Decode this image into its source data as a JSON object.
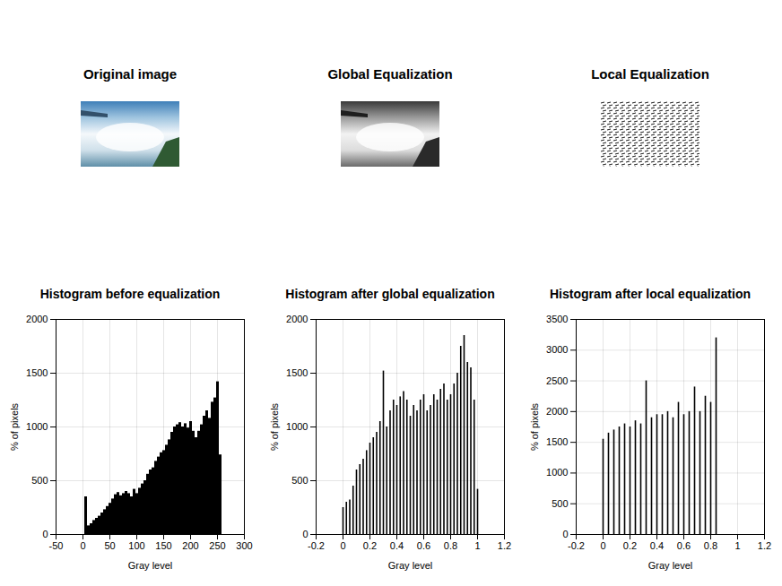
{
  "chart_data": [
    {
      "type": "image",
      "title": "Original image"
    },
    {
      "type": "image",
      "title": "Global Equalization"
    },
    {
      "type": "image",
      "title": "Local Equalization"
    },
    {
      "type": "bar",
      "title": "Histogram before equalization",
      "x": [
        5,
        10,
        15,
        20,
        25,
        30,
        35,
        40,
        45,
        50,
        55,
        60,
        65,
        70,
        75,
        80,
        85,
        90,
        95,
        100,
        105,
        110,
        115,
        120,
        125,
        130,
        135,
        140,
        145,
        150,
        155,
        160,
        165,
        170,
        175,
        180,
        185,
        190,
        195,
        200,
        205,
        210,
        215,
        220,
        225,
        230,
        235,
        240,
        245,
        250,
        255
      ],
      "values": [
        350,
        80,
        100,
        130,
        150,
        170,
        200,
        230,
        260,
        290,
        330,
        370,
        390,
        360,
        380,
        400,
        380,
        350,
        420,
        380,
        430,
        470,
        500,
        560,
        600,
        620,
        680,
        720,
        760,
        780,
        830,
        880,
        950,
        1000,
        1020,
        1040,
        1000,
        1030,
        990,
        1050,
        960,
        900,
        960,
        1020,
        1100,
        1150,
        1080,
        1230,
        1270,
        1420,
        740
      ],
      "color": "#000000",
      "xlabel": "Gray level",
      "ylabel": "% of pixels",
      "xlim": [
        -50,
        300
      ],
      "xticks": [
        -50,
        0,
        50,
        100,
        150,
        200,
        250,
        300
      ],
      "ylim": [
        0,
        2000
      ],
      "yticks": [
        0,
        500,
        1000,
        1500,
        2000
      ],
      "grid": true
    },
    {
      "type": "bar",
      "title": "Histogram after global equalization",
      "x": [
        0,
        0.025,
        0.05,
        0.075,
        0.1,
        0.125,
        0.15,
        0.175,
        0.2,
        0.225,
        0.25,
        0.275,
        0.3,
        0.325,
        0.35,
        0.375,
        0.4,
        0.425,
        0.45,
        0.475,
        0.5,
        0.525,
        0.55,
        0.575,
        0.6,
        0.625,
        0.65,
        0.675,
        0.7,
        0.725,
        0.75,
        0.775,
        0.8,
        0.825,
        0.85,
        0.875,
        0.9,
        0.925,
        0.95,
        0.975,
        1
      ],
      "values": [
        250,
        300,
        320,
        450,
        600,
        650,
        700,
        780,
        850,
        900,
        950,
        1050,
        1520,
        1000,
        1150,
        1250,
        1200,
        1280,
        1330,
        1250,
        1100,
        1200,
        1150,
        1250,
        1300,
        1150,
        1200,
        1300,
        1250,
        1350,
        1400,
        1250,
        1300,
        1400,
        1500,
        1750,
        1850,
        1600,
        1550,
        1250,
        420
      ],
      "color": "#000000",
      "xlabel": "Gray level",
      "ylabel": "% of pixels",
      "xlim": [
        -0.2,
        1.2
      ],
      "xticks": [
        -0.2,
        0,
        0.2,
        0.4,
        0.6,
        0.8,
        1,
        1.2
      ],
      "ylim": [
        0,
        2000
      ],
      "yticks": [
        0,
        500,
        1000,
        1500,
        2000
      ],
      "grid": true
    },
    {
      "type": "bar",
      "title": "Histogram after local equalization",
      "x": [
        0,
        0.04,
        0.08,
        0.12,
        0.16,
        0.2,
        0.24,
        0.28,
        0.32,
        0.36,
        0.4,
        0.44,
        0.48,
        0.52,
        0.56,
        0.6,
        0.64,
        0.68,
        0.72,
        0.76,
        0.8,
        0.84
      ],
      "values": [
        1550,
        1650,
        1700,
        1750,
        1800,
        1750,
        1850,
        1800,
        2500,
        1900,
        1950,
        1950,
        2000,
        1900,
        2150,
        1950,
        2000,
        2400,
        2000,
        2250,
        2150,
        3200
      ],
      "color": "#000000",
      "xlabel": "Gray level",
      "ylabel": "% of pixels",
      "xlim": [
        -0.2,
        1.2
      ],
      "xticks": [
        -0.2,
        0,
        0.2,
        0.4,
        0.6,
        0.8,
        1,
        1.2
      ],
      "ylim": [
        0,
        3500
      ],
      "yticks": [
        0,
        500,
        1000,
        1500,
        2000,
        2500,
        3000,
        3500
      ],
      "grid": true
    }
  ]
}
